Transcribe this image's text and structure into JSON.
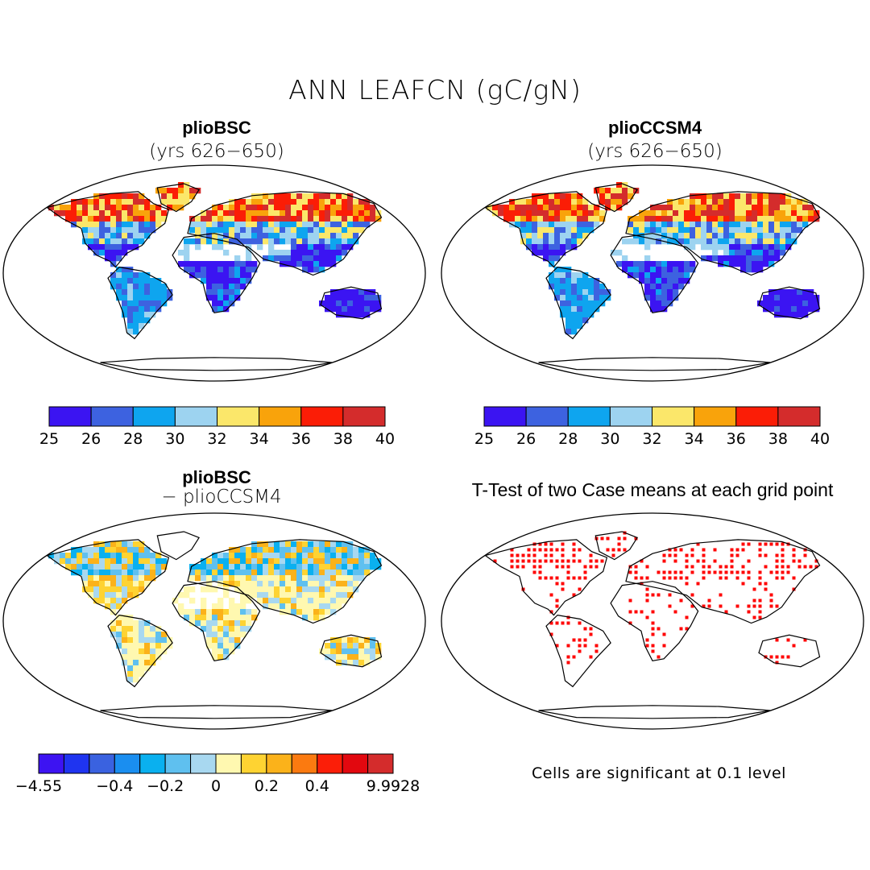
{
  "figure": {
    "title": "ANN LEAFCN (gC/gN)",
    "panels": [
      {
        "id": "p1",
        "title": "plioBSC",
        "subtitle": "(yrs 626−650)"
      },
      {
        "id": "p2",
        "title": "plioCCSM4",
        "subtitle": "(yrs 626−650)"
      },
      {
        "id": "p3",
        "title": "plioBSC",
        "subtitle": "− plioCCSM4"
      },
      {
        "id": "p4",
        "title": "T-Test of two Case means at each grid point",
        "subtitle": ""
      }
    ],
    "significance_note": "Cells are significant at 0.1 level"
  },
  "colorbars": {
    "absolute": {
      "labels": [
        "25",
        "26",
        "28",
        "30",
        "32",
        "34",
        "36",
        "38",
        "40"
      ],
      "colors": [
        "#3b14f2",
        "#3d62e0",
        "#0ea5ef",
        "#9dd3f0",
        "#fbe76a",
        "#f9a30b",
        "#fb1d06",
        "#d42c2c"
      ]
    },
    "difference": {
      "labels": [
        "−4.55",
        "−0.4",
        "−0.2",
        "0",
        "0.2",
        "0.4",
        "9.9928"
      ],
      "label_boundary_index": [
        0,
        3,
        5,
        7,
        9,
        11,
        14
      ],
      "colors": [
        "#3d13f2",
        "#1f34f0",
        "#3a62e0",
        "#1a8ef0",
        "#0ab0ef",
        "#5fc0ef",
        "#a8d8f0",
        "#fff8b0",
        "#fed332",
        "#fbb21a",
        "#fb7a10",
        "#fb1e08",
        "#e2080f",
        "#d42c2c"
      ]
    }
  }
}
